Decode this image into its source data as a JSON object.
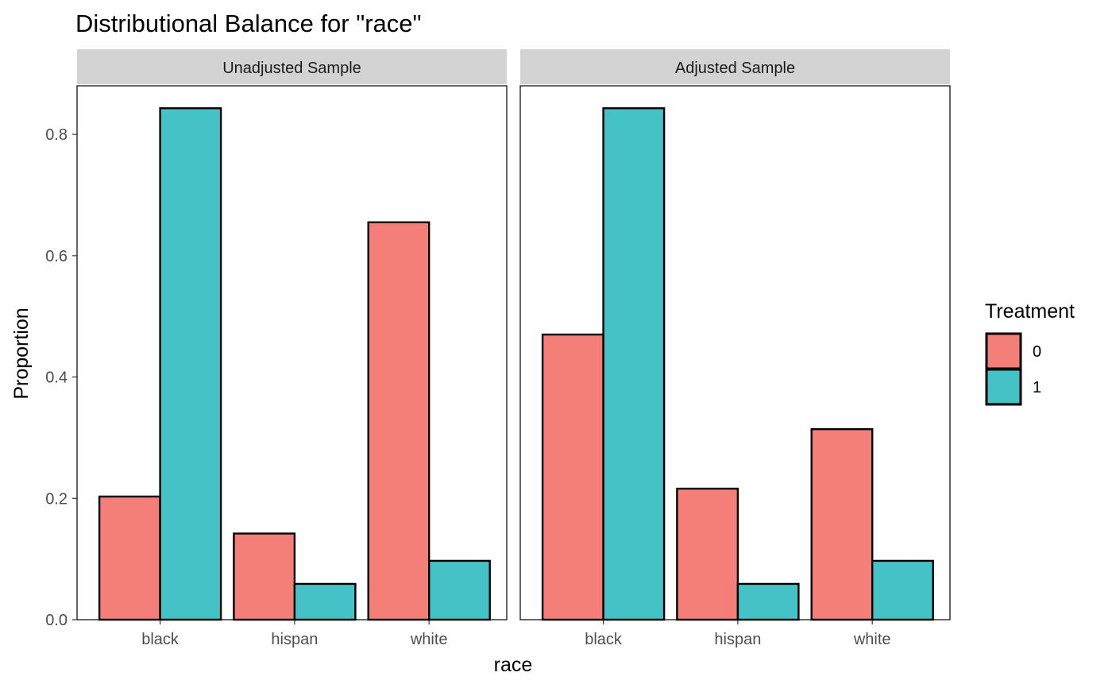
{
  "chart_data": {
    "type": "bar",
    "title": "Distributional Balance for \"race\"",
    "xlabel": "race",
    "ylabel": "Proportion",
    "ylim": [
      0,
      0.88
    ],
    "yticks": [
      0.0,
      0.2,
      0.4,
      0.6,
      0.8
    ],
    "ytick_labels": [
      "0.0",
      "0.2",
      "0.4",
      "0.6",
      "0.8"
    ],
    "categories": [
      "black",
      "hispan",
      "white"
    ],
    "legend": {
      "title": "Treatment",
      "placement": "right",
      "entries": [
        {
          "label": "0",
          "color": "#F8766D"
        },
        {
          "label": "1",
          "color": "#00BFC4"
        }
      ]
    },
    "grid": false,
    "panels": [
      {
        "label": "Unadjusted Sample",
        "series": [
          {
            "name": "0",
            "color": "#F8766D",
            "values": [
              0.203,
              0.142,
              0.655
            ]
          },
          {
            "name": "1",
            "color": "#00BFC4",
            "values": [
              0.843,
              0.059,
              0.097
            ]
          }
        ]
      },
      {
        "label": "Adjusted Sample",
        "series": [
          {
            "name": "0",
            "color": "#F8766D",
            "values": [
              0.47,
              0.216,
              0.314
            ]
          },
          {
            "name": "1",
            "color": "#00BFC4",
            "values": [
              0.843,
              0.059,
              0.097
            ]
          }
        ]
      }
    ]
  },
  "colors": {
    "bar_fill_0": "#F47F79",
    "bar_fill_1": "#44C2C6",
    "strip_background": "#D3D3D3"
  }
}
